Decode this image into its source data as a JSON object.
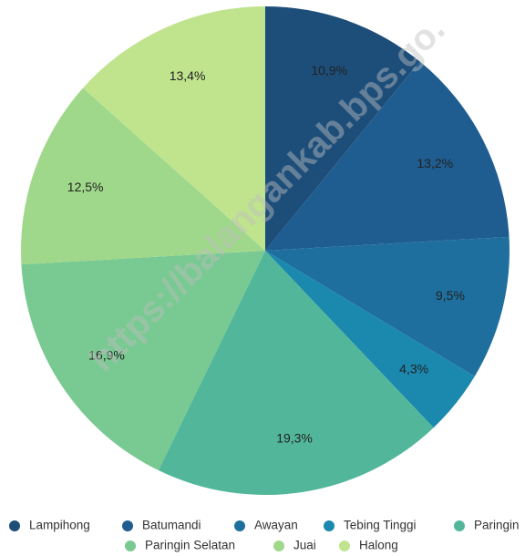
{
  "chart_data": {
    "type": "pie",
    "categories": [
      "Lampihong",
      "Batumandi",
      "Awayan",
      "Tebing Tinggi",
      "Paringin",
      "Paringin Selatan",
      "Juai",
      "Halong"
    ],
    "values": [
      10.9,
      13.2,
      9.5,
      4.3,
      19.3,
      16.9,
      12.5,
      13.4
    ],
    "value_labels": [
      "10,9%",
      "13,2%",
      "9,5%",
      "4,3%",
      "19,3%",
      "16,9%",
      "12,5%",
      "13,4%"
    ],
    "colors": [
      "#1d4e7a",
      "#1f5d90",
      "#1e6f9d",
      "#1b88ae",
      "#52b79a",
      "#79c992",
      "#9fd88a",
      "#bfe48d"
    ],
    "watermark": "https://balangankab.bps.go."
  }
}
